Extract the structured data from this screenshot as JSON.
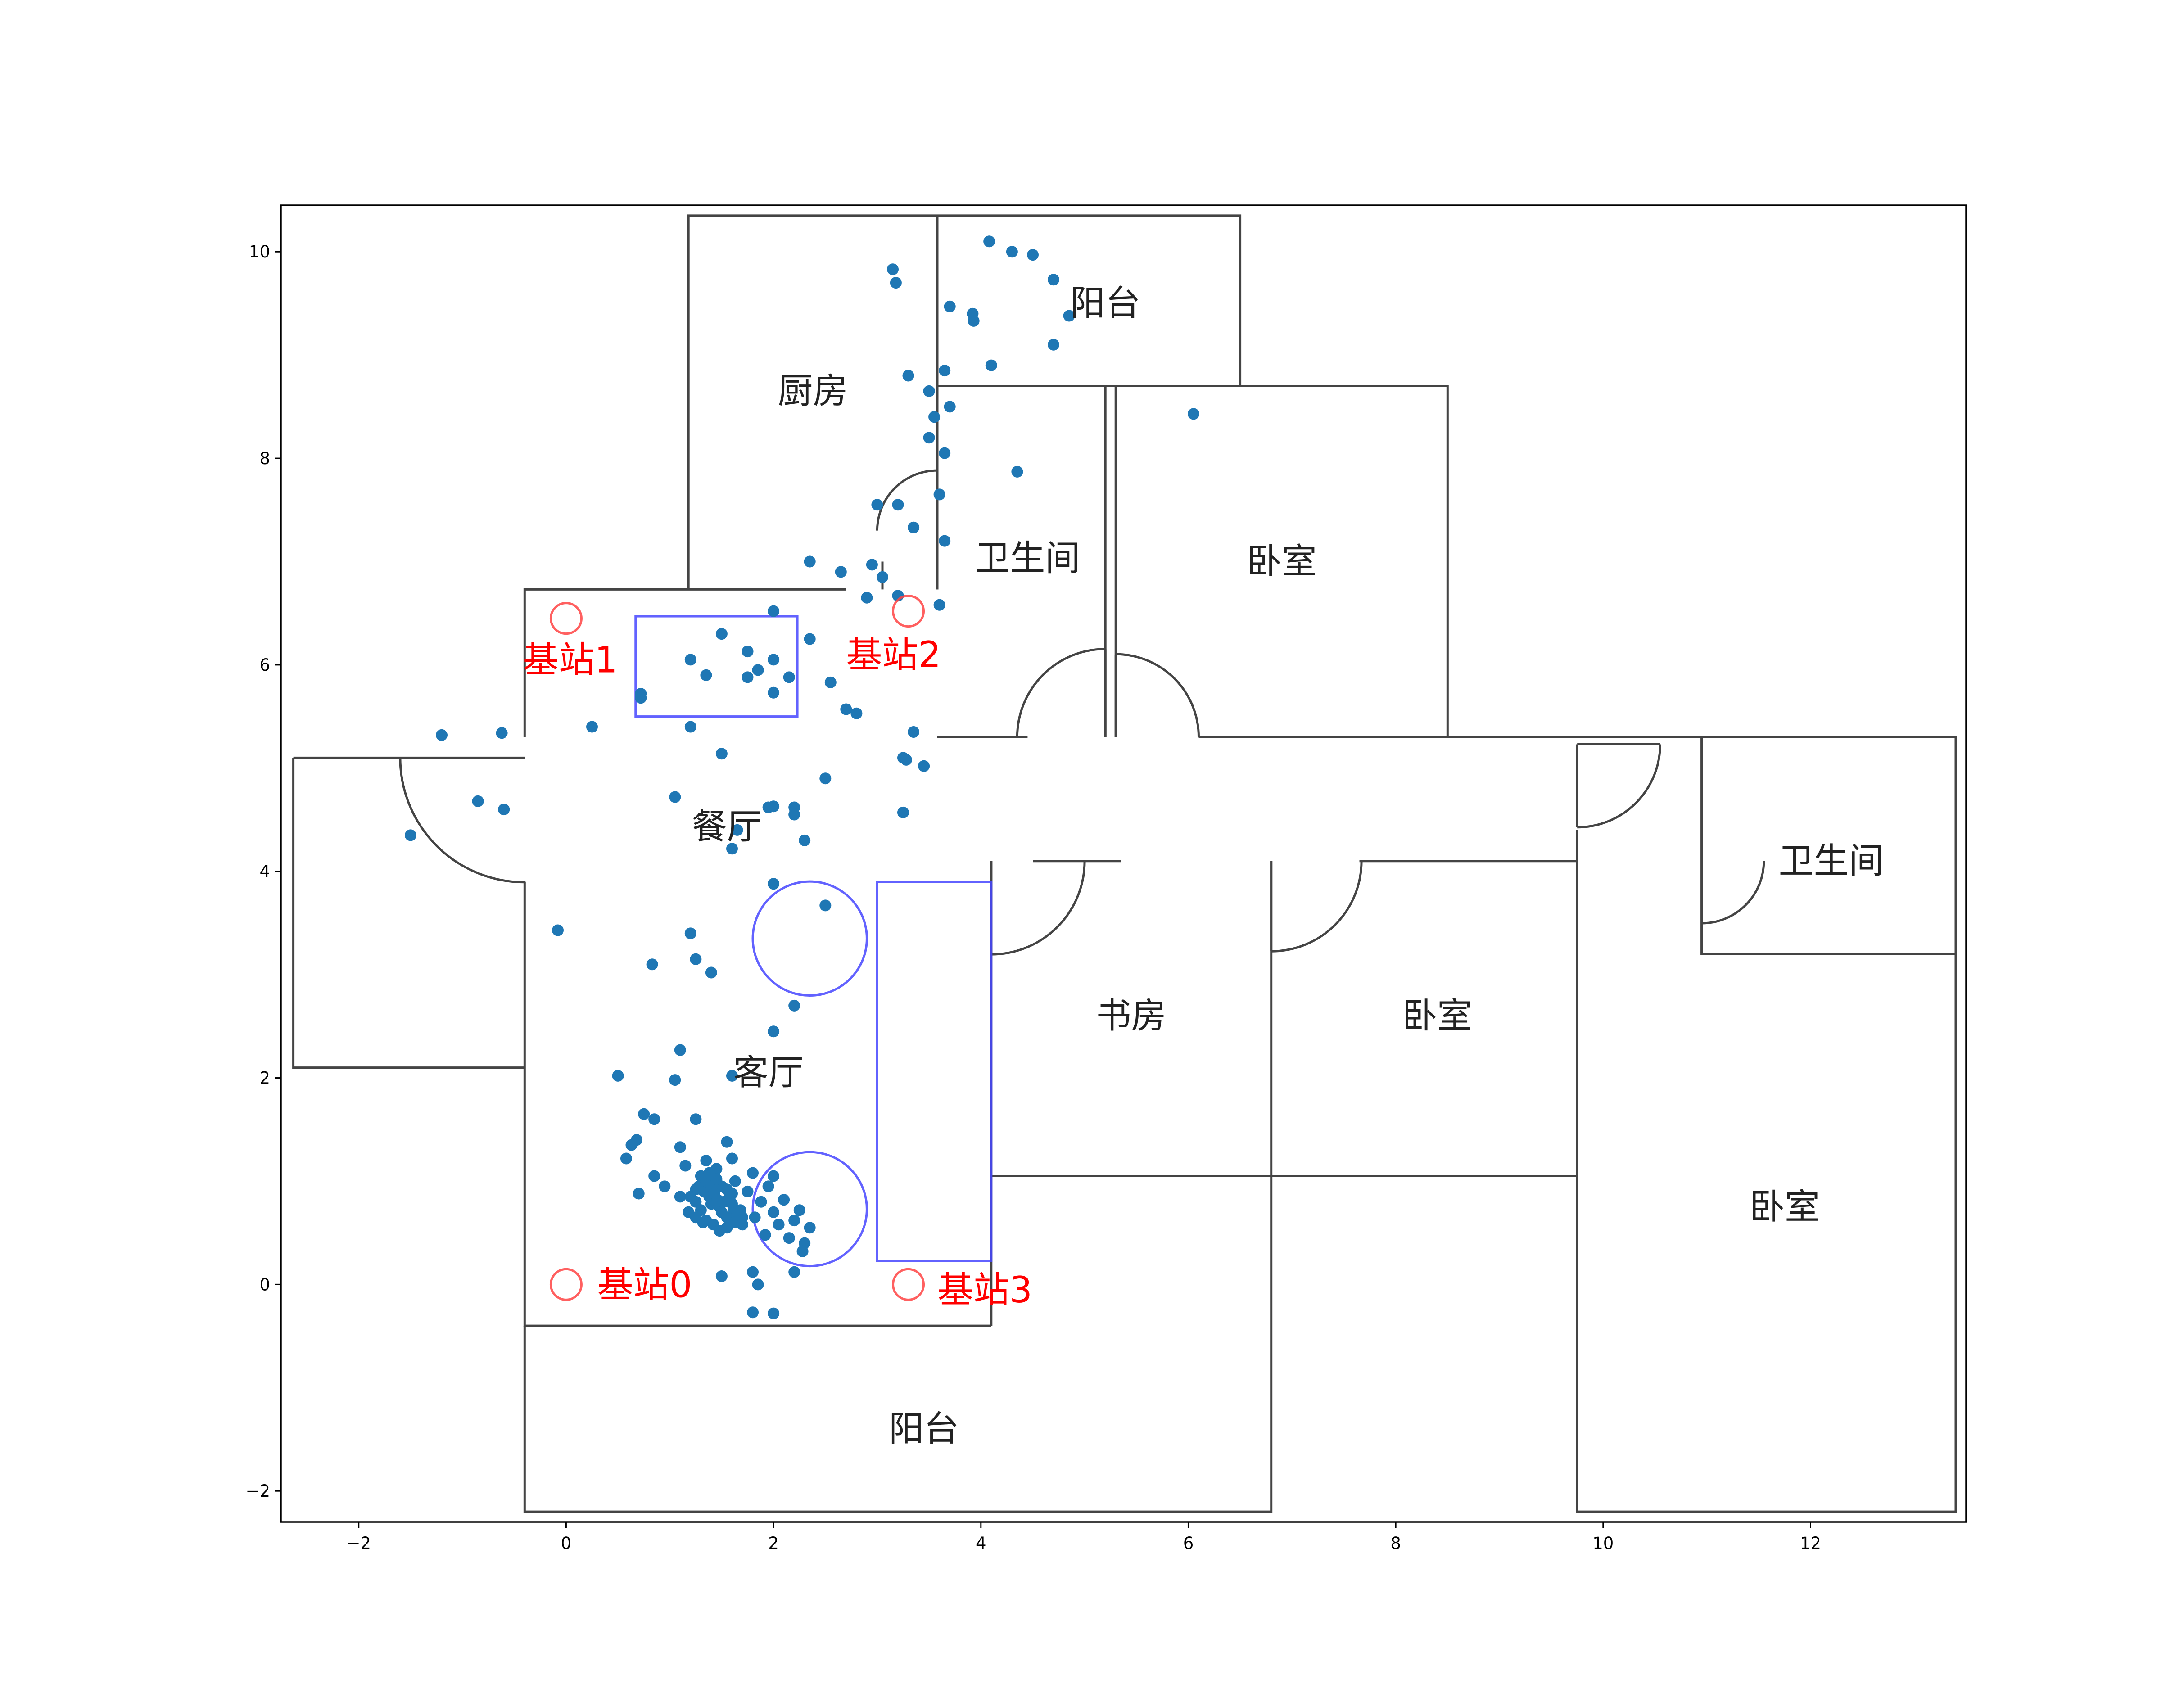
{
  "chart_data": {
    "type": "scatter",
    "title": "",
    "xlabel": "",
    "ylabel": "",
    "xlim": [
      -2.75,
      13.5
    ],
    "ylim": [
      -2.3,
      10.45
    ],
    "grid": false,
    "x_ticks": [
      {
        "value": -2,
        "label": "−2"
      },
      {
        "value": 0,
        "label": "0"
      },
      {
        "value": 2,
        "label": "2"
      },
      {
        "value": 4,
        "label": "4"
      },
      {
        "value": 6,
        "label": "6"
      },
      {
        "value": 8,
        "label": "8"
      },
      {
        "value": 10,
        "label": "10"
      },
      {
        "value": 12,
        "label": "12"
      }
    ],
    "y_ticks": [
      {
        "value": -2,
        "label": "−2"
      },
      {
        "value": 0,
        "label": "0"
      },
      {
        "value": 2,
        "label": "2"
      },
      {
        "value": 4,
        "label": "4"
      },
      {
        "value": 6,
        "label": "6"
      },
      {
        "value": 8,
        "label": "8"
      },
      {
        "value": 10,
        "label": "10"
      }
    ],
    "colors": {
      "points": "#1f77b4",
      "walls": "#444444",
      "furniture": "#4646ff",
      "stations": "#ff4444",
      "station_text": "#ff0000"
    },
    "walls": [
      [
        [
          -0.4,
          5.3
        ],
        [
          -0.4,
          6.73
        ],
        [
          2.7,
          6.73
        ]
      ],
      [
        [
          -0.4,
          5.1
        ],
        [
          -2.63,
          5.1
        ]
      ],
      [
        [
          -2.63,
          5.1
        ],
        [
          -2.63,
          2.1
        ],
        [
          -0.4,
          2.1
        ]
      ],
      [
        [
          -0.4,
          3.9
        ],
        [
          -0.4,
          -0.4
        ],
        [
          4.1,
          -0.4
        ]
      ],
      [
        [
          1.18,
          6.73
        ],
        [
          1.18,
          10.35
        ],
        [
          6.5,
          10.35
        ],
        [
          6.5,
          8.7
        ]
      ],
      [
        [
          3.58,
          10.35
        ],
        [
          3.58,
          6.73
        ]
      ],
      [
        [
          3.58,
          8.7
        ],
        [
          8.5,
          8.7
        ],
        [
          8.5,
          5.3
        ]
      ],
      [
        [
          3.58,
          5.3
        ],
        [
          4.45,
          5.3
        ]
      ],
      [
        [
          5.2,
          5.3
        ],
        [
          5.2,
          8.7
        ]
      ],
      [
        [
          5.3,
          8.7
        ],
        [
          5.3,
          5.3
        ]
      ],
      [
        [
          6.1,
          5.3
        ],
        [
          13.4,
          5.3
        ],
        [
          13.4,
          -2.2
        ],
        [
          9.75,
          -2.2
        ],
        [
          9.75,
          4.4
        ]
      ],
      [
        [
          9.75,
          5.23
        ],
        [
          10.55,
          5.23
        ]
      ],
      [
        [
          10.95,
          5.3
        ],
        [
          10.95,
          4.1
        ]
      ],
      [
        [
          10.95,
          3.5
        ],
        [
          10.95,
          3.2
        ],
        [
          13.4,
          3.2
        ]
      ],
      [
        [
          4.1,
          4.1
        ],
        [
          4.1,
          -0.4
        ]
      ],
      [
        [
          4.5,
          4.1
        ],
        [
          5.35,
          4.1
        ]
      ],
      [
        [
          6.8,
          4.1
        ],
        [
          6.8,
          -2.2
        ],
        [
          -0.4,
          -2.2
        ],
        [
          -0.4,
          -0.4
        ]
      ],
      [
        [
          7.65,
          4.1
        ],
        [
          9.75,
          4.1
        ]
      ],
      [
        [
          4.1,
          1.05
        ],
        [
          9.75,
          1.05
        ]
      ],
      [
        [
          3.05,
          6.73
        ],
        [
          3.05,
          7.0
        ]
      ]
    ],
    "door_arcs": [
      {
        "pivot": [
          -0.4,
          5.1
        ],
        "r": 1.2,
        "start": 180,
        "end": 270
      },
      {
        "pivot": [
          3.58,
          7.3
        ],
        "r": 0.58,
        "start": 90,
        "end": 180
      },
      {
        "pivot": [
          5.2,
          5.3
        ],
        "r": 0.85,
        "start": 90,
        "end": 180
      },
      {
        "pivot": [
          5.3,
          5.3
        ],
        "r": 0.8,
        "start": 0,
        "end": 90
      },
      {
        "pivot": [
          4.1,
          4.1
        ],
        "r": 0.9,
        "start": 270,
        "end": 360
      },
      {
        "pivot": [
          6.8,
          4.1
        ],
        "r": 0.87,
        "start": 270,
        "end": 360
      },
      {
        "pivot": [
          9.75,
          5.23
        ],
        "r": 0.8,
        "start": 270,
        "end": 360
      },
      {
        "pivot": [
          10.95,
          4.1
        ],
        "r": 0.6,
        "start": 270,
        "end": 360
      }
    ],
    "door_lines": [
      [
        [
          4.1,
          4.1
        ],
        [
          4.1,
          3.2
        ]
      ],
      [
        [
          6.8,
          4.1
        ],
        [
          6.8,
          3.23
        ]
      ],
      [
        [
          9.75,
          5.23
        ],
        [
          9.75,
          4.43
        ]
      ],
      [
        [
          10.95,
          4.1
        ],
        [
          10.95,
          3.5
        ]
      ],
      [
        [
          3.58,
          7.3
        ],
        [
          3.58,
          6.73
        ]
      ],
      [
        [
          5.2,
          5.3
        ],
        [
          5.2,
          6.15
        ]
      ],
      [
        [
          5.3,
          5.3
        ],
        [
          5.3,
          6.1
        ]
      ]
    ],
    "furniture": {
      "rects": [
        {
          "x0": 0.67,
          "y0": 5.5,
          "x1": 2.23,
          "y1": 6.47
        },
        {
          "x0": 3.0,
          "y0": 0.23,
          "x1": 4.1,
          "y1": 3.9
        }
      ],
      "circles": [
        {
          "cx": 2.35,
          "cy": 3.35,
          "r": 0.55
        },
        {
          "cx": 2.35,
          "cy": 0.73,
          "r": 0.55
        }
      ]
    },
    "rooms": [
      {
        "label": "厨房",
        "x": 2.38,
        "y": 8.65
      },
      {
        "label": "阳台",
        "x": 5.2,
        "y": 9.5
      },
      {
        "label": "卫生间",
        "x": 4.45,
        "y": 7.03
      },
      {
        "label": "卧室",
        "x": 6.9,
        "y": 7.0
      },
      {
        "label": "餐厅",
        "x": 1.55,
        "y": 4.43
      },
      {
        "label": "客厅",
        "x": 1.95,
        "y": 2.05
      },
      {
        "label": "书房",
        "x": 5.45,
        "y": 2.6
      },
      {
        "label": "卧室",
        "x": 8.4,
        "y": 2.6
      },
      {
        "label": "卫生间",
        "x": 12.2,
        "y": 4.1
      },
      {
        "label": "卧室",
        "x": 11.75,
        "y": 0.75
      },
      {
        "label": "阳台",
        "x": 3.45,
        "y": -1.4
      }
    ],
    "base_stations": [
      {
        "label": "基站0",
        "x": 0.0,
        "y": 0.0,
        "label_x": 0.3,
        "label_y": 0.0
      },
      {
        "label": "基站1",
        "x": 0.0,
        "y": 6.45,
        "label_x": -0.42,
        "label_y": 6.05
      },
      {
        "label": "基站2",
        "x": 3.3,
        "y": 6.52,
        "label_x": 2.7,
        "label_y": 6.1
      },
      {
        "label": "基站3",
        "x": 3.3,
        "y": 0.0,
        "label_x": 3.58,
        "label_y": -0.05
      }
    ],
    "series": [
      {
        "points": [
          [
            4.08,
            10.1
          ],
          [
            4.3,
            10.0
          ],
          [
            4.5,
            9.97
          ],
          [
            3.15,
            9.83
          ],
          [
            3.18,
            9.7
          ],
          [
            4.7,
            9.73
          ],
          [
            4.85,
            9.38
          ],
          [
            3.7,
            9.47
          ],
          [
            3.92,
            9.4
          ],
          [
            3.93,
            9.33
          ],
          [
            4.7,
            9.1
          ],
          [
            4.1,
            8.9
          ],
          [
            3.3,
            8.8
          ],
          [
            3.65,
            8.85
          ],
          [
            3.5,
            8.65
          ],
          [
            3.7,
            8.5
          ],
          [
            6.05,
            8.43
          ],
          [
            3.55,
            8.4
          ],
          [
            3.5,
            8.2
          ],
          [
            3.65,
            8.05
          ],
          [
            4.35,
            7.87
          ],
          [
            3.6,
            7.65
          ],
          [
            3.0,
            7.55
          ],
          [
            3.2,
            7.55
          ],
          [
            3.35,
            7.33
          ],
          [
            3.65,
            7.2
          ],
          [
            2.35,
            7.0
          ],
          [
            2.65,
            6.9
          ],
          [
            2.95,
            6.97
          ],
          [
            3.05,
            6.85
          ],
          [
            2.9,
            6.65
          ],
          [
            3.2,
            6.67
          ],
          [
            3.6,
            6.58
          ],
          [
            2.0,
            6.52
          ],
          [
            1.5,
            6.3
          ],
          [
            2.35,
            6.25
          ],
          [
            1.75,
            6.13
          ],
          [
            1.2,
            6.05
          ],
          [
            2.0,
            6.05
          ],
          [
            1.85,
            5.95
          ],
          [
            1.35,
            5.9
          ],
          [
            1.75,
            5.88
          ],
          [
            2.15,
            5.88
          ],
          [
            2.55,
            5.83
          ],
          [
            2.0,
            5.73
          ],
          [
            0.72,
            5.72
          ],
          [
            0.72,
            5.68
          ],
          [
            2.7,
            5.57
          ],
          [
            2.8,
            5.53
          ],
          [
            0.25,
            5.4
          ],
          [
            1.2,
            5.4
          ],
          [
            3.35,
            5.35
          ],
          [
            3.25,
            5.1
          ],
          [
            3.28,
            5.08
          ],
          [
            1.5,
            5.14
          ],
          [
            3.45,
            5.02
          ],
          [
            2.5,
            4.9
          ],
          [
            1.05,
            4.72
          ],
          [
            1.95,
            4.62
          ],
          [
            2.0,
            4.63
          ],
          [
            2.2,
            4.62
          ],
          [
            2.2,
            4.55
          ],
          [
            3.25,
            4.57
          ],
          [
            1.65,
            4.4
          ],
          [
            2.3,
            4.3
          ],
          [
            1.6,
            4.22
          ],
          [
            -1.2,
            5.32
          ],
          [
            -0.62,
            5.34
          ],
          [
            -0.85,
            4.68
          ],
          [
            -0.6,
            4.6
          ],
          [
            -1.5,
            4.35
          ],
          [
            2.0,
            3.88
          ],
          [
            2.5,
            3.67
          ],
          [
            -0.08,
            3.43
          ],
          [
            1.2,
            3.4
          ],
          [
            1.25,
            3.15
          ],
          [
            1.4,
            3.02
          ],
          [
            0.83,
            3.1
          ],
          [
            2.2,
            2.7
          ],
          [
            2.0,
            2.45
          ],
          [
            1.1,
            2.27
          ],
          [
            1.05,
            1.98
          ],
          [
            0.5,
            2.02
          ],
          [
            1.6,
            2.02
          ],
          [
            0.75,
            1.65
          ],
          [
            0.85,
            1.6
          ],
          [
            1.25,
            1.6
          ],
          [
            0.68,
            1.4
          ],
          [
            0.63,
            1.35
          ],
          [
            0.58,
            1.22
          ],
          [
            1.1,
            1.33
          ],
          [
            1.55,
            1.38
          ],
          [
            1.35,
            1.2
          ],
          [
            1.6,
            1.22
          ],
          [
            2.0,
            1.05
          ],
          [
            0.7,
            0.88
          ],
          [
            0.85,
            1.05
          ],
          [
            0.95,
            0.95
          ],
          [
            1.1,
            0.85
          ],
          [
            1.15,
            1.15
          ],
          [
            1.18,
            0.7
          ],
          [
            1.25,
            0.92
          ],
          [
            1.3,
            1.05
          ],
          [
            1.32,
            0.6
          ],
          [
            1.38,
            0.85
          ],
          [
            1.4,
            0.78
          ],
          [
            1.45,
            1.12
          ],
          [
            1.5,
            0.95
          ],
          [
            1.55,
            0.65
          ],
          [
            1.6,
            0.88
          ],
          [
            1.63,
            1.0
          ],
          [
            1.68,
            0.72
          ],
          [
            1.7,
            0.58
          ],
          [
            1.75,
            0.9
          ],
          [
            1.8,
            1.08
          ],
          [
            1.82,
            0.65
          ],
          [
            1.88,
            0.8
          ],
          [
            1.92,
            0.48
          ],
          [
            1.95,
            0.95
          ],
          [
            2.0,
            0.7
          ],
          [
            2.05,
            0.58
          ],
          [
            2.1,
            0.82
          ],
          [
            2.15,
            0.45
          ],
          [
            2.2,
            0.62
          ],
          [
            2.25,
            0.72
          ],
          [
            2.3,
            0.4
          ],
          [
            2.35,
            0.55
          ],
          [
            2.28,
            0.32
          ],
          [
            2.2,
            0.12
          ],
          [
            1.5,
            0.08
          ],
          [
            1.8,
            0.12
          ],
          [
            1.85,
            0.0
          ],
          [
            1.8,
            -0.27
          ],
          [
            2.0,
            -0.28
          ],
          [
            1.2,
            0.85
          ],
          [
            1.25,
            0.8
          ],
          [
            1.28,
            0.95
          ],
          [
            1.33,
            0.9
          ],
          [
            1.35,
            1.0
          ],
          [
            1.4,
            0.95
          ],
          [
            1.43,
            0.88
          ],
          [
            1.46,
            0.82
          ],
          [
            1.48,
            0.75
          ],
          [
            1.5,
            0.7
          ],
          [
            1.52,
            0.8
          ],
          [
            1.55,
            0.92
          ],
          [
            1.58,
            0.85
          ],
          [
            1.6,
            0.78
          ],
          [
            1.62,
            0.72
          ],
          [
            1.65,
            0.68
          ],
          [
            1.45,
            1.02
          ],
          [
            1.38,
            1.08
          ],
          [
            1.3,
            0.72
          ],
          [
            1.25,
            0.65
          ],
          [
            1.35,
            0.62
          ],
          [
            1.42,
            0.58
          ],
          [
            1.48,
            0.52
          ],
          [
            1.55,
            0.55
          ],
          [
            1.62,
            0.6
          ],
          [
            1.7,
            0.65
          ]
        ]
      }
    ]
  }
}
